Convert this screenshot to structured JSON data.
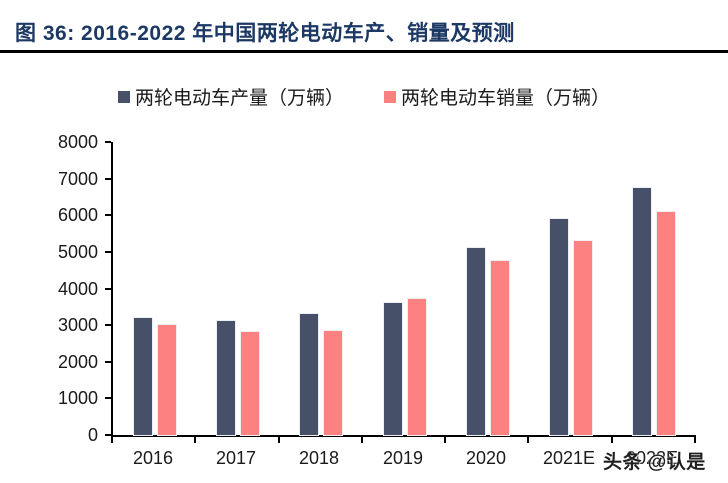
{
  "title": "图 36:  2016-2022 年中国两轮电动车产、销量及预测",
  "watermark": "头条 @认是",
  "colors": {
    "title": "#1c3864",
    "axis": "#000000",
    "label_text": "#1a1a1a",
    "production": "#475069",
    "sales": "#fc8180"
  },
  "chart_data": {
    "type": "bar",
    "title": "图 36: 2016-2022 年中国两轮电动车产、销量及预测",
    "categories": [
      "2016",
      "2017",
      "2018",
      "2019",
      "2020",
      "2021E",
      "2022E"
    ],
    "series": [
      {
        "name": "两轮电动车产量（万辆）",
        "color": "#475069",
        "values": [
          3200,
          3100,
          3300,
          3600,
          5100,
          5900,
          6750
        ]
      },
      {
        "name": "两轮电动车销量（万辆）",
        "color": "#fc8180",
        "values": [
          3000,
          2800,
          2850,
          3700,
          4750,
          5300,
          6100
        ]
      }
    ],
    "xlabel": "",
    "ylabel": "",
    "ylim": [
      0,
      8000
    ],
    "ytick_step": 1000,
    "grid": false,
    "legend_position": "top"
  }
}
